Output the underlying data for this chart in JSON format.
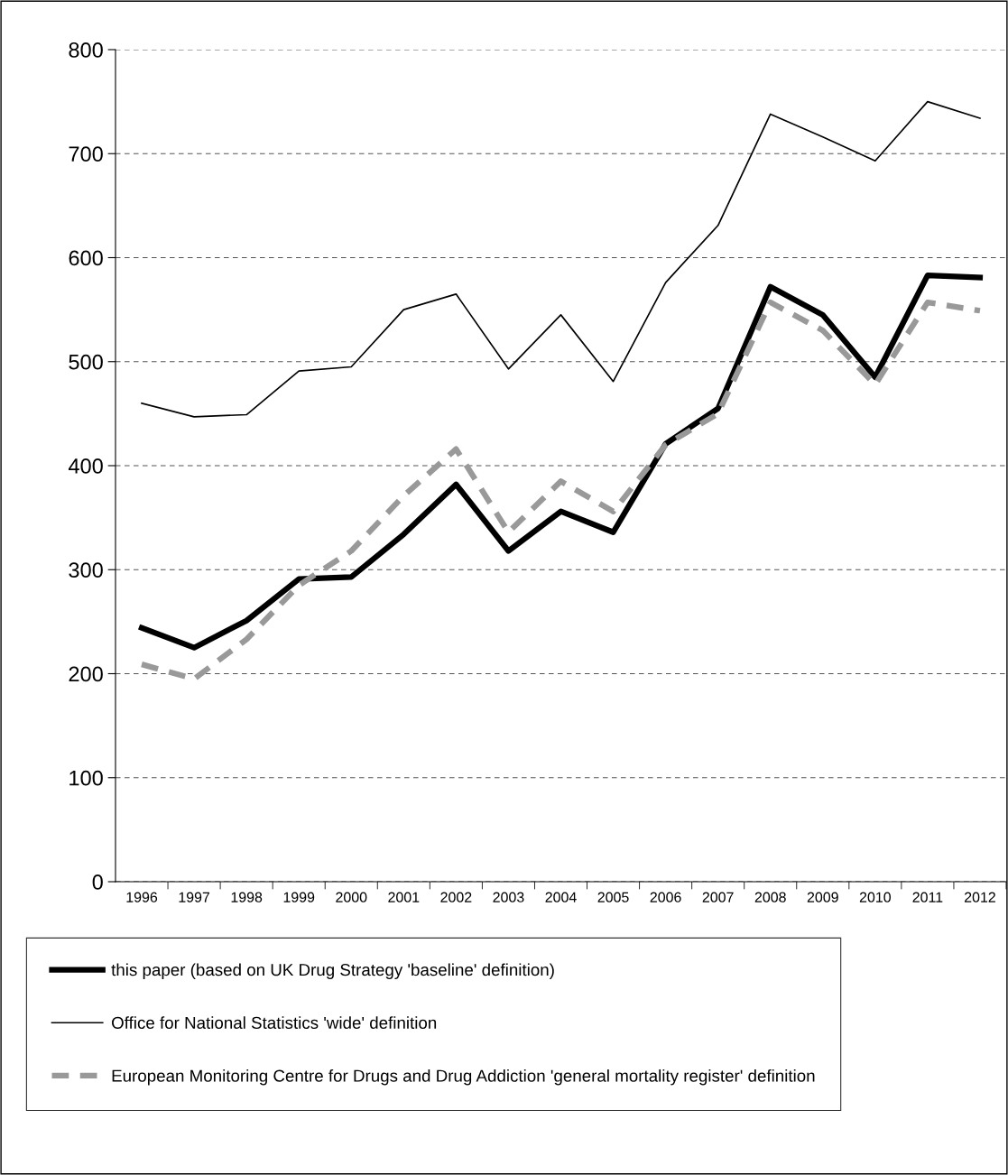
{
  "chart_data": {
    "type": "line",
    "categories": [
      "1996",
      "1997",
      "1998",
      "1999",
      "2000",
      "2001",
      "2002",
      "2003",
      "2004",
      "2005",
      "2006",
      "2007",
      "2008",
      "2009",
      "2010",
      "2011",
      "2012"
    ],
    "series": [
      {
        "name": "this paper (based on UK Drug Strategy 'baseline' definition)",
        "color": "#000000",
        "line_style": "solid",
        "values": [
          244,
          225,
          251,
          291,
          293,
          334,
          382,
          318,
          356,
          336,
          421,
          455,
          572,
          545,
          485,
          583,
          581
        ]
      },
      {
        "name": "Office for National Statistics 'wide' definition",
        "color": "#000000",
        "line_style": "solid",
        "values": [
          460,
          447,
          449,
          491,
          495,
          550,
          565,
          493,
          545,
          481,
          576,
          631,
          738,
          716,
          693,
          750,
          734
        ]
      },
      {
        "name": "European Monitoring Centre for Drugs and Drug Addiction 'general mortality register' definition",
        "color": "#999999",
        "line_style": "dashed",
        "values": [
          209,
          195,
          233,
          285,
          318,
          371,
          416,
          336,
          385,
          356,
          420,
          450,
          557,
          530,
          478,
          557,
          549
        ]
      }
    ],
    "ylim": [
      0,
      800
    ],
    "yticks": [
      0,
      100,
      200,
      300,
      400,
      500,
      600,
      700,
      800
    ],
    "grid": "y",
    "legend": "bottom",
    "marker": "none"
  }
}
